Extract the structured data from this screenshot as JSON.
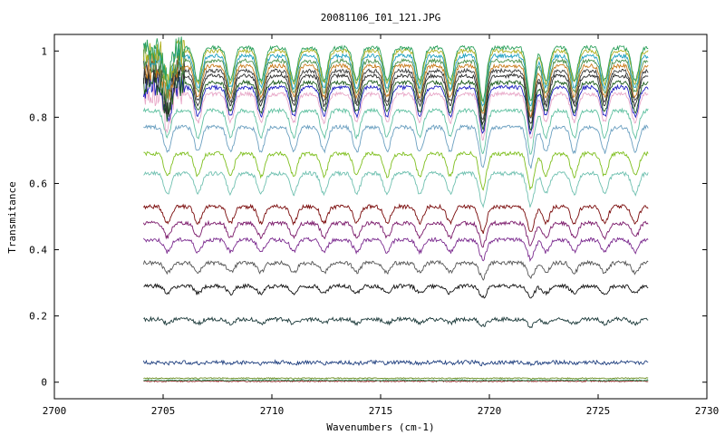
{
  "chart_data": {
    "type": "line",
    "title": "20081106_I01_121.JPG",
    "xlabel": "Wavenumbers (cm-1)",
    "ylabel": "Transmitance",
    "xlim": [
      2700,
      2730
    ],
    "ylim": [
      -0.05,
      1.05
    ],
    "xticks": [
      2700,
      2705,
      2710,
      2715,
      2720,
      2725,
      2730
    ],
    "xtick_labels": [
      "2700",
      "2705",
      "2710",
      "2715",
      "2720",
      "2725",
      "2730"
    ],
    "yticks": [
      0,
      0.2,
      0.4,
      0.6,
      0.8,
      1
    ],
    "ytick_labels": [
      "0",
      "0.2",
      "0.4",
      "0.6",
      "0.8",
      "1"
    ],
    "grid": false,
    "legend": false,
    "x_range_data": [
      2704.1,
      2727.3
    ],
    "dip_positions": [
      2705.2,
      2706.6,
      2708.1,
      2709.5,
      2711.0,
      2712.4,
      2713.9,
      2715.3,
      2716.8,
      2718.2,
      2719.7,
      2721.9,
      2722.6,
      2723.9,
      2725.3,
      2726.7
    ],
    "series": [
      {
        "baseline": 0.003,
        "color": "#8b1a1a"
      },
      {
        "baseline": 0.006,
        "color": "#2e8b57"
      },
      {
        "baseline": 0.012,
        "color": "#6b8e23"
      },
      {
        "baseline": 0.06,
        "color": "#1f3f7f"
      },
      {
        "baseline": 0.19,
        "color": "#1c3a3a"
      },
      {
        "baseline": 0.29,
        "color": "#111111"
      },
      {
        "baseline": 0.36,
        "color": "#555555"
      },
      {
        "baseline": 0.43,
        "color": "#7b2b8f"
      },
      {
        "baseline": 0.48,
        "color": "#7b1a6b"
      },
      {
        "baseline": 0.53,
        "color": "#7a0a0a"
      },
      {
        "baseline": 0.63,
        "color": "#6fc0b0"
      },
      {
        "baseline": 0.69,
        "color": "#7fbf1f"
      },
      {
        "baseline": 0.77,
        "color": "#6a9fc0"
      },
      {
        "baseline": 0.82,
        "color": "#5fc0a0"
      },
      {
        "baseline": 0.87,
        "color": "#e8a8c8"
      },
      {
        "baseline": 0.89,
        "color": "#1f1fbf"
      },
      {
        "baseline": 0.905,
        "color": "#1a5a1a"
      },
      {
        "baseline": 0.925,
        "color": "#2a2a2a"
      },
      {
        "baseline": 0.94,
        "color": "#3a3a3a"
      },
      {
        "baseline": 0.955,
        "color": "#c87a1a"
      },
      {
        "baseline": 0.97,
        "color": "#4a8f4a"
      },
      {
        "baseline": 0.985,
        "color": "#1fa0c0"
      },
      {
        "baseline": 1.0,
        "color": "#b0b020"
      },
      {
        "baseline": 1.01,
        "color": "#2aa05a"
      }
    ]
  }
}
